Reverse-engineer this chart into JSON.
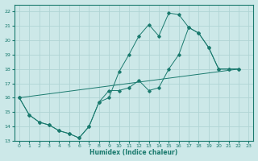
{
  "xlabel": "Humidex (Indice chaleur)",
  "xlim": [
    -0.5,
    23.5
  ],
  "ylim": [
    13,
    22.5
  ],
  "xticks": [
    0,
    1,
    2,
    3,
    4,
    5,
    6,
    7,
    8,
    9,
    10,
    11,
    12,
    13,
    14,
    15,
    16,
    17,
    18,
    19,
    20,
    21,
    22,
    23
  ],
  "yticks": [
    13,
    14,
    15,
    16,
    17,
    18,
    19,
    20,
    21,
    22
  ],
  "bg_color": "#cce8e8",
  "line_color": "#1a7a6e",
  "grid_color": "#b0d4d4",
  "line1_x": [
    0,
    1,
    2,
    3,
    4,
    5,
    6,
    7,
    8,
    9,
    10,
    11,
    12,
    13,
    14,
    15,
    16,
    17,
    18,
    19,
    20,
    21,
    22
  ],
  "line1_y": [
    16.0,
    14.8,
    14.3,
    14.1,
    13.7,
    13.5,
    13.2,
    14.0,
    15.7,
    16.0,
    17.8,
    19.0,
    20.3,
    21.1,
    20.3,
    21.9,
    21.8,
    20.9,
    20.5,
    19.5,
    18.0,
    18.0,
    18.0
  ],
  "line2_x": [
    0,
    1,
    2,
    3,
    4,
    5,
    6,
    7,
    8,
    9,
    10,
    11,
    12,
    13,
    14,
    15,
    16,
    17,
    18,
    19,
    20,
    21,
    22
  ],
  "line2_y": [
    16.0,
    14.8,
    14.3,
    14.1,
    13.7,
    13.5,
    13.2,
    14.0,
    15.7,
    16.5,
    16.5,
    16.7,
    17.2,
    16.5,
    16.7,
    18.0,
    19.0,
    20.9,
    20.5,
    19.5,
    18.0,
    18.0,
    18.0
  ],
  "line3_x": [
    0,
    22
  ],
  "line3_y": [
    16.0,
    18.0
  ]
}
